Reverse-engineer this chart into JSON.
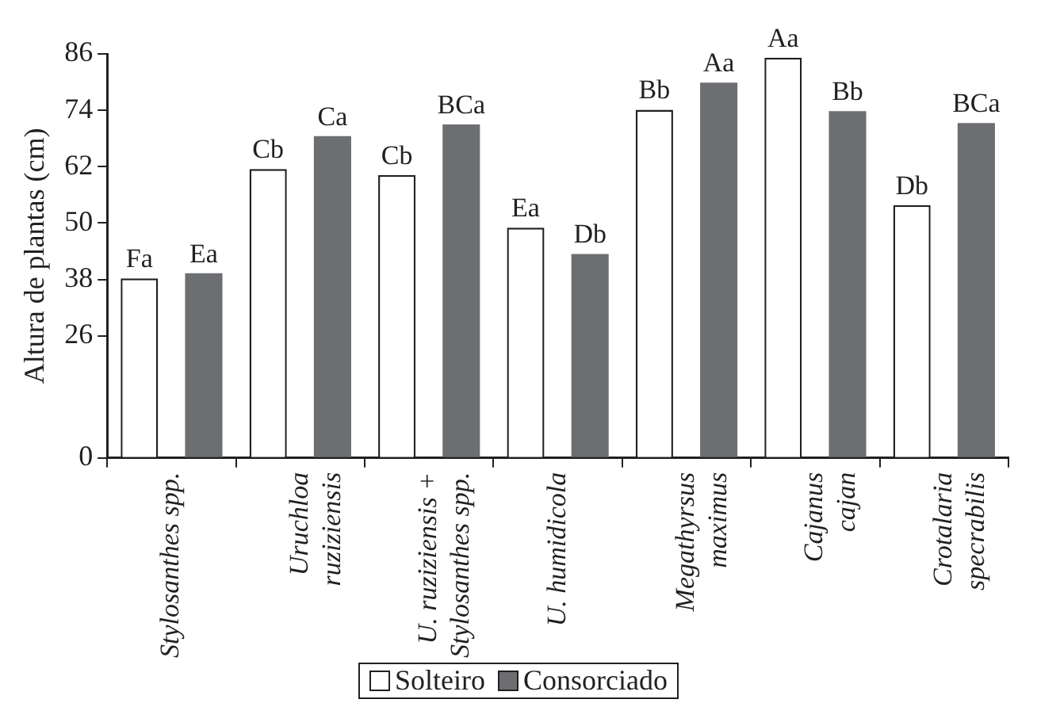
{
  "chart_data": {
    "type": "bar",
    "ylabel": "Altura de plantas (cm)",
    "categories": [
      "Stylosanthes spp.",
      "Uruchloa\nruziziensis",
      "U. ruziziensis +\nStylosanthes spp.",
      "U. humidicola",
      "Megathyrsus\nmaximus",
      "Cajanus\ncajan",
      "Crotalaria\nspecrabilis"
    ],
    "series": [
      {
        "name": "Solteiro",
        "color": "#ffffff",
        "values": [
          38.2,
          61.5,
          60.2,
          49,
          74.1,
          85.2,
          53.8
        ],
        "value_labels": [
          "Fa",
          "Cb",
          "Cb",
          "Ea",
          "Bb",
          "Aa",
          "Db"
        ]
      },
      {
        "name": "Consorciado",
        "color": "#6d6e71",
        "values": [
          39.3,
          68.5,
          71,
          43.4,
          79.9,
          73.8,
          71.3
        ],
        "value_labels": [
          "Ea",
          "Ca",
          "BCa",
          "Db",
          "Aa",
          "Bb",
          "BCa"
        ]
      }
    ],
    "ylim": [
      0,
      86
    ],
    "yticks": [
      0,
      26,
      38,
      50,
      62,
      74,
      86
    ],
    "grid": false,
    "legend": "bottom"
  }
}
